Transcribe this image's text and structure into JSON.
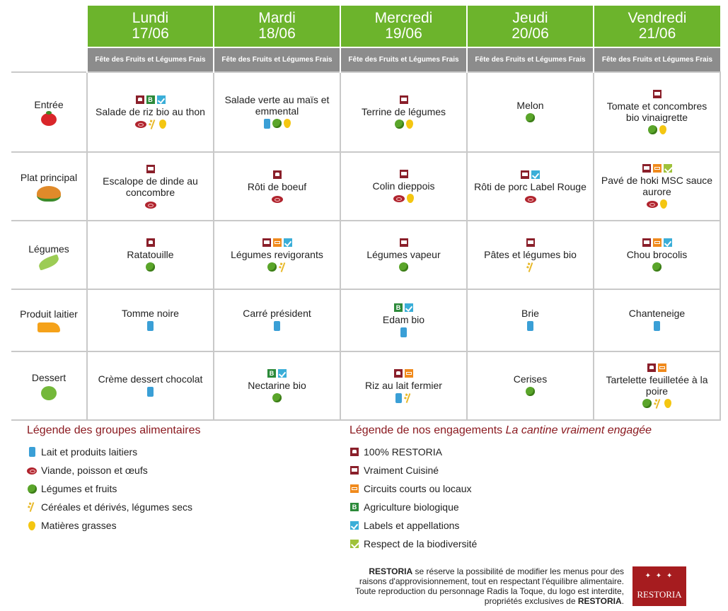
{
  "days": [
    {
      "name": "Lundi",
      "date": "17/06",
      "theme": "Fête des Fruits et Légumes Frais"
    },
    {
      "name": "Mardi",
      "date": "18/06",
      "theme": "Fête des Fruits et Légumes Frais"
    },
    {
      "name": "Mercredi",
      "date": "19/06",
      "theme": "Fête des Fruits et Légumes Frais"
    },
    {
      "name": "Jeudi",
      "date": "20/06",
      "theme": "Fête des Fruits et Légumes Frais"
    },
    {
      "name": "Vendredi",
      "date": "21/06",
      "theme": "Fête des Fruits et Légumes Frais"
    }
  ],
  "rows": [
    {
      "label": "Entrée",
      "dishes": [
        {
          "name": "Salade de riz bio au thon",
          "tags": [
            "resto",
            "bio",
            "label"
          ],
          "icons": [
            "viande",
            "cereale",
            "grasse"
          ]
        },
        {
          "name": "Salade verte au maïs et emmental",
          "tags": [],
          "icons": [
            "lait",
            "legfruit",
            "grasse"
          ]
        },
        {
          "name": "Terrine de légumes",
          "tags": [
            "cuisine"
          ],
          "icons": [
            "legfruit",
            "grasse"
          ]
        },
        {
          "name": "Melon",
          "tags": [],
          "icons": [
            "legfruit"
          ]
        },
        {
          "name": "Tomate et concombres bio vinaigrette",
          "tags": [
            "cuisine"
          ],
          "icons": [
            "legfruit",
            "grasse"
          ]
        }
      ]
    },
    {
      "label": "Plat principal",
      "dishes": [
        {
          "name": "Escalope de dinde au concombre",
          "tags": [
            "cuisine"
          ],
          "icons": [
            "viande"
          ]
        },
        {
          "name": "Rôti de boeuf",
          "tags": [
            "resto"
          ],
          "icons": [
            "viande"
          ]
        },
        {
          "name": "Colin dieppois",
          "tags": [
            "cuisine"
          ],
          "icons": [
            "viande",
            "grasse"
          ]
        },
        {
          "name": "Rôti de porc Label Rouge",
          "tags": [
            "cuisine",
            "label"
          ],
          "icons": [
            "viande"
          ]
        },
        {
          "name": "Pavé de hoki MSC sauce aurore",
          "tags": [
            "cuisine",
            "circuit",
            "biodiv"
          ],
          "icons": [
            "viande",
            "grasse"
          ]
        }
      ]
    },
    {
      "label": "Légumes",
      "dishes": [
        {
          "name": "Ratatouille",
          "tags": [
            "resto"
          ],
          "icons": [
            "legfruit"
          ]
        },
        {
          "name": "Légumes revigorants",
          "tags": [
            "cuisine",
            "circuit",
            "label"
          ],
          "icons": [
            "legfruit",
            "cereale"
          ]
        },
        {
          "name": "Légumes vapeur",
          "tags": [
            "cuisine"
          ],
          "icons": [
            "legfruit"
          ]
        },
        {
          "name": "Pâtes et légumes bio",
          "tags": [
            "cuisine"
          ],
          "icons": [
            "cereale"
          ]
        },
        {
          "name": "Chou brocolis",
          "tags": [
            "cuisine",
            "circuit",
            "label"
          ],
          "icons": [
            "legfruit"
          ]
        }
      ]
    },
    {
      "label": "Produit laitier",
      "dishes": [
        {
          "name": "Tomme noire",
          "tags": [],
          "icons": [
            "lait"
          ]
        },
        {
          "name": "Carré président",
          "tags": [],
          "icons": [
            "lait"
          ]
        },
        {
          "name": "Edam bio",
          "tags": [
            "bio",
            "label"
          ],
          "icons": [
            "lait"
          ]
        },
        {
          "name": "Brie",
          "tags": [],
          "icons": [
            "lait"
          ]
        },
        {
          "name": "Chanteneige",
          "tags": [],
          "icons": [
            "lait"
          ]
        }
      ]
    },
    {
      "label": "Dessert",
      "dishes": [
        {
          "name": "Crème dessert chocolat",
          "tags": [],
          "icons": [
            "lait"
          ]
        },
        {
          "name": "Nectarine bio",
          "tags": [
            "bio",
            "label"
          ],
          "icons": [
            "legfruit"
          ]
        },
        {
          "name": "Riz au lait fermier",
          "tags": [
            "resto",
            "circuit"
          ],
          "icons": [
            "lait",
            "cereale"
          ]
        },
        {
          "name": "Cerises",
          "tags": [],
          "icons": [
            "legfruit"
          ]
        },
        {
          "name": "Tartelette feuilletée à la poire",
          "tags": [
            "resto",
            "circuit"
          ],
          "icons": [
            "legfruit",
            "cereale",
            "grasse"
          ]
        }
      ]
    }
  ],
  "legend_groups": {
    "title": "Légende des groupes alimentaires",
    "items": [
      {
        "icon": "lait",
        "label": "Lait et produits laitiers"
      },
      {
        "icon": "viande",
        "label": "Viande, poisson et œufs"
      },
      {
        "icon": "legfruit",
        "label": "Légumes et fruits"
      },
      {
        "icon": "cereale",
        "label": "Céréales et dérivés, légumes secs"
      },
      {
        "icon": "grasse",
        "label": "Matières grasses"
      }
    ]
  },
  "legend_engagements": {
    "title": "Légende de nos engagements",
    "title_italic": "La cantine vraiment engagée",
    "items": [
      {
        "icon": "resto",
        "label": "100% RESTORIA"
      },
      {
        "icon": "cuisine",
        "label": "Vraiment Cuisiné"
      },
      {
        "icon": "circuit",
        "label": "Circuits courts ou locaux"
      },
      {
        "icon": "bio",
        "label": "Agriculture biologique"
      },
      {
        "icon": "label",
        "label": "Labels et appellations"
      },
      {
        "icon": "biodiv",
        "label": "Respect de la biodiversité"
      }
    ]
  },
  "footer": {
    "brand": "RESTORIA",
    "line1": " se réserve la possibilité de modifier les menus pour des",
    "line2": "raisons d'approvisionnement, tout en respectant l'équilibre alimentaire.",
    "line3": "Toute reproduction du personnage Radis la Toque, du logo est interdite,",
    "line4": "propriétés exclusives de ",
    "brand2": "RESTORIA",
    "end": "."
  },
  "logo_text": "RESTORIA",
  "colors": {
    "header_green": "#6cb42c",
    "theme_gray": "#8c8c8c",
    "legend_red": "#8b1a20",
    "logo_red": "#a61c1f"
  }
}
